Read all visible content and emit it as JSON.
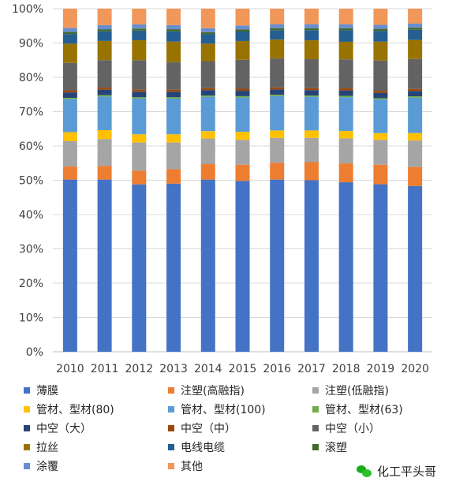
{
  "chart_data": {
    "type": "stacked-bar-100",
    "categories": [
      "2010",
      "2011",
      "2012",
      "2013",
      "2014",
      "2015",
      "2016",
      "2017",
      "2018",
      "2019",
      "2020"
    ],
    "ylim": [
      0,
      100
    ],
    "yticks": [
      "0%",
      "10%",
      "20%",
      "30%",
      "40%",
      "50%",
      "60%",
      "70%",
      "80%",
      "90%",
      "100%"
    ],
    "legend_position": "bottom",
    "series": [
      {
        "name": "薄膜",
        "color": "#4472c4",
        "values": [
          50.2,
          50.2,
          48.8,
          49.0,
          51.2,
          50.8,
          51.2,
          51.0,
          50.2,
          49.8,
          48.8
        ]
      },
      {
        "name": "注塑(高融指)",
        "color": "#ed7d31",
        "values": [
          3.8,
          4.0,
          4.0,
          4.2,
          4.6,
          4.8,
          5.0,
          5.4,
          5.6,
          5.8,
          5.6
        ]
      },
      {
        "name": "注塑(低融指)",
        "color": "#a5a5a5",
        "values": [
          7.4,
          7.8,
          8.2,
          7.8,
          7.6,
          7.4,
          7.4,
          7.2,
          7.4,
          7.4,
          7.8
        ]
      },
      {
        "name": "管材、型材(80)",
        "color": "#ffc000",
        "values": [
          2.6,
          2.6,
          2.4,
          2.4,
          2.2,
          2.4,
          2.2,
          2.2,
          2.2,
          2.0,
          2.2
        ]
      },
      {
        "name": "管材、型材(100)",
        "color": "#5b9bd5",
        "values": [
          9.6,
          9.8,
          10.4,
          10.4,
          10.2,
          10.2,
          10.2,
          10.0,
          10.0,
          10.0,
          10.4
        ]
      },
      {
        "name": "管材、型材(63)",
        "color": "#70ad47",
        "values": [
          0.4,
          0.4,
          0.4,
          0.4,
          0.4,
          0.4,
          0.4,
          0.4,
          0.4,
          0.4,
          0.4
        ]
      },
      {
        "name": "中空（大）",
        "color": "#264478",
        "values": [
          1.6,
          1.6,
          1.6,
          1.6,
          1.6,
          1.6,
          1.6,
          1.6,
          1.6,
          1.6,
          1.6
        ]
      },
      {
        "name": "中空（中）",
        "color": "#9e480e",
        "values": [
          0.6,
          0.6,
          0.6,
          0.6,
          0.6,
          0.6,
          0.6,
          0.6,
          0.6,
          0.6,
          0.6
        ]
      },
      {
        "name": "中空（小）",
        "color": "#636363",
        "values": [
          8.0,
          8.0,
          8.6,
          8.0,
          8.0,
          8.6,
          8.6,
          8.6,
          8.6,
          9.0,
          8.8
        ]
      },
      {
        "name": "拉丝",
        "color": "#997300",
        "values": [
          5.6,
          5.6,
          5.8,
          6.0,
          5.2,
          5.6,
          5.6,
          5.6,
          5.2,
          5.6,
          5.6
        ]
      },
      {
        "name": "电线电缆",
        "color": "#255e91",
        "values": [
          2.8,
          2.8,
          2.8,
          3.0,
          2.8,
          2.8,
          2.8,
          3.0,
          3.4,
          3.2,
          3.0
        ]
      },
      {
        "name": "滚塑",
        "color": "#43682b",
        "values": [
          0.6,
          0.6,
          0.6,
          0.6,
          0.6,
          0.6,
          0.6,
          0.6,
          0.6,
          0.6,
          0.6
        ]
      },
      {
        "name": "涂覆",
        "color": "#698ed0",
        "values": [
          1.2,
          1.2,
          1.2,
          1.2,
          1.2,
          1.2,
          1.2,
          1.2,
          1.2,
          1.2,
          1.2
        ]
      },
      {
        "name": "其他",
        "color": "#f1975a",
        "values": [
          5.6,
          4.8,
          4.6,
          4.8,
          5.8,
          5.0,
          4.6,
          4.6,
          4.6,
          4.8,
          4.4
        ]
      }
    ]
  },
  "watermark": {
    "text": "化工平头哥",
    "icon": "wechat-icon"
  }
}
